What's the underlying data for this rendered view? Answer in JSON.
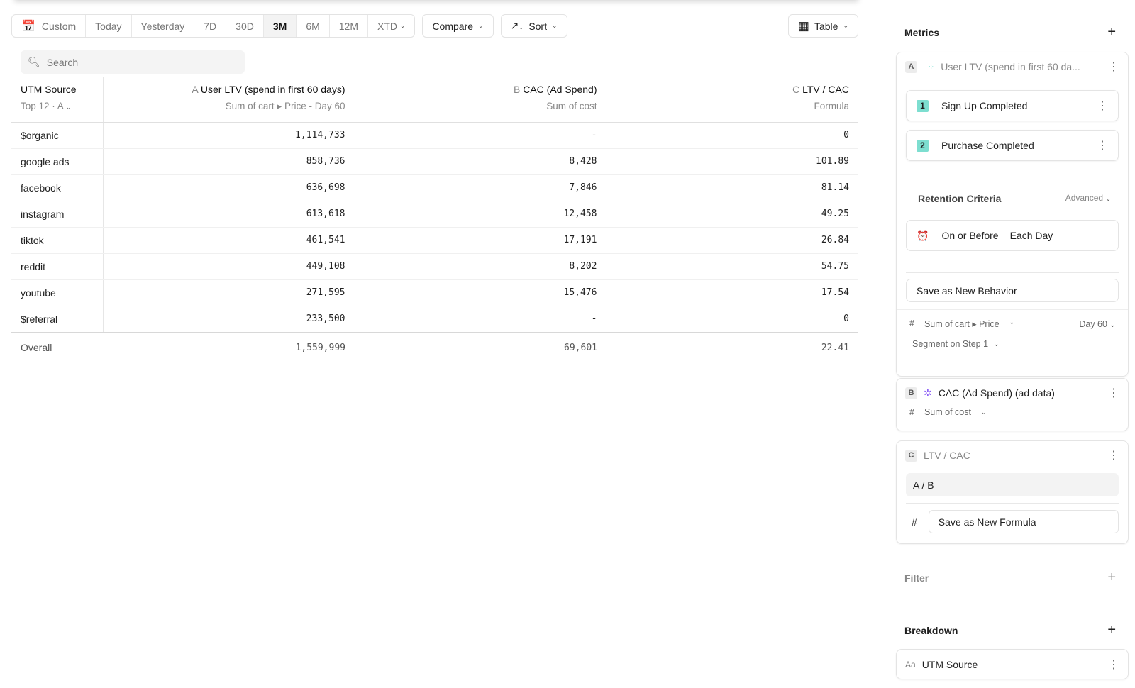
{
  "toolbar": {
    "date_ranges": [
      "Custom",
      "Today",
      "Yesterday",
      "7D",
      "30D",
      "3M",
      "6M",
      "12M",
      "XTD"
    ],
    "active": "3M",
    "compare": "Compare",
    "sort": "Sort",
    "view": "Table"
  },
  "search": {
    "placeholder": "Search"
  },
  "table": {
    "columns": [
      {
        "title": "UTM Source",
        "sub": "Top 12 · A"
      },
      {
        "letter": "A",
        "title": "User LTV (spend in first 60 days)",
        "sub": "Sum of cart ▸ Price - Day 60"
      },
      {
        "letter": "B",
        "title": "CAC (Ad Spend)",
        "sub": "Sum of cost"
      },
      {
        "letter": "C",
        "title": "LTV / CAC",
        "sub": "Formula"
      }
    ],
    "rows": [
      [
        "$organic",
        "1,114,733",
        "-",
        "0"
      ],
      [
        "google ads",
        "858,736",
        "8,428",
        "101.89"
      ],
      [
        "facebook",
        "636,698",
        "7,846",
        "81.14"
      ],
      [
        "instagram",
        "613,618",
        "12,458",
        "49.25"
      ],
      [
        "tiktok",
        "461,541",
        "17,191",
        "26.84"
      ],
      [
        "reddit",
        "449,108",
        "8,202",
        "54.75"
      ],
      [
        "youtube",
        "271,595",
        "15,476",
        "17.54"
      ],
      [
        "$referral",
        "233,500",
        "-",
        "0"
      ]
    ],
    "overall": [
      "Overall",
      "1,559,999",
      "69,601",
      "22.41"
    ]
  },
  "panel": {
    "metrics_title": "Metrics",
    "a": {
      "letter": "A",
      "name": "User LTV (spend in first 60 da...",
      "steps": [
        {
          "n": "1",
          "label": "Sign Up Completed"
        },
        {
          "n": "2",
          "label": "Purchase Completed"
        }
      ],
      "retention": "Retention Criteria",
      "advanced": "Advanced",
      "on_or_before": "On or Before",
      "each_day": "Each Day",
      "save": "Save as New Behavior",
      "measure": "Sum of cart ▸ Price",
      "day": "Day 60",
      "segment": "Segment on Step 1"
    },
    "b": {
      "letter": "B",
      "name": "CAC (Ad Spend) (ad data)",
      "measure": "Sum of cost"
    },
    "c": {
      "letter": "C",
      "name": "LTV / CAC",
      "formula": "A / B",
      "save": "Save as New Formula"
    },
    "filter_title": "Filter",
    "breakdown_title": "Breakdown",
    "breakdown_item": "UTM Source",
    "hash": "#",
    "aa": "Aa"
  },
  "colors": {
    "step_badge": "#7dded0",
    "ad_icon": "#8a5cf6"
  }
}
